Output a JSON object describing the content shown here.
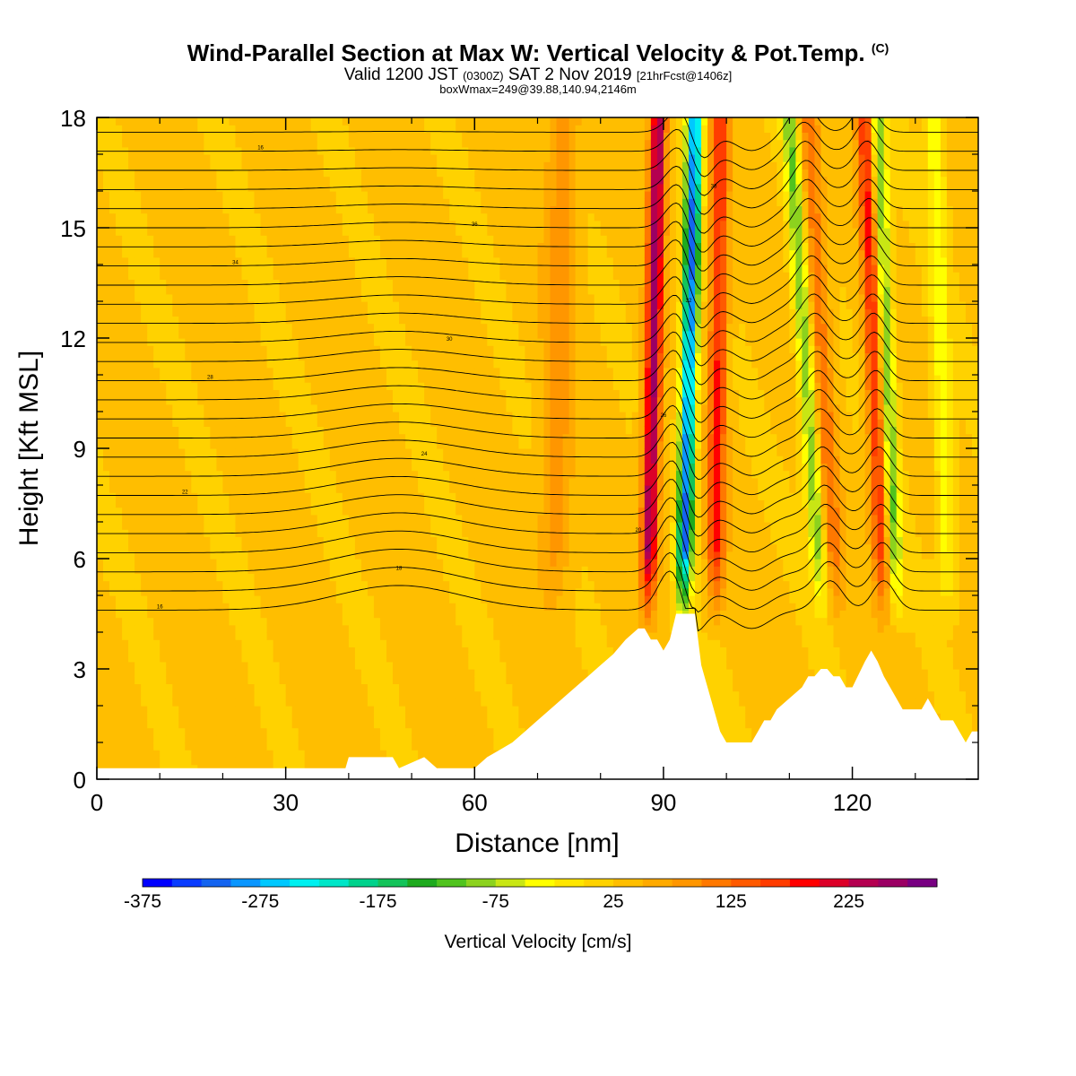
{
  "header": {
    "title": "Wind-Parallel Section at Max W: Vertical Velocity & Pot.Temp.",
    "title_mark": "(C)",
    "subtitle_valid": "Valid 1200 JST",
    "subtitle_utc": "(0300Z)",
    "subtitle_date": "SAT 2 Nov 2019",
    "subtitle_fcst": "[21hrFcst@1406z]",
    "subtitle2": "boxWmax=249@39.88,140.94,2146m"
  },
  "chart_data": {
    "type": "heatmap",
    "title": "Wind-Parallel Section at Max W: Vertical Velocity & Pot.Temp.",
    "xlabel": "Distance [nm]",
    "ylabel": "Height [Kft MSL]",
    "xlim": [
      0,
      140
    ],
    "ylim": [
      0,
      18
    ],
    "x_ticks": [
      "0",
      "30",
      "60",
      "90",
      "120"
    ],
    "x_tick_values": [
      0,
      30,
      60,
      90,
      120
    ],
    "y_ticks": [
      "0",
      "3",
      "6",
      "9",
      "12",
      "15",
      "18"
    ],
    "y_tick_values": [
      0,
      3,
      6,
      9,
      12,
      15,
      18
    ],
    "colorbar": {
      "title": "Vertical Velocity [cm/s]",
      "labels": [
        "-375",
        "-275",
        "-175",
        "-75",
        "25",
        "125",
        "225"
      ],
      "label_values": [
        -375,
        -275,
        -175,
        -75,
        25,
        125,
        225
      ],
      "min": -375,
      "max": 300,
      "step": 25,
      "colors": [
        "#0000ff",
        "#0a3cff",
        "#1464f0",
        "#0a96ff",
        "#00c8ff",
        "#00f0f0",
        "#00e6c8",
        "#00d28c",
        "#14c35a",
        "#1eaa1e",
        "#50c31e",
        "#8cd21e",
        "#c8e614",
        "#ffff00",
        "#ffe600",
        "#ffd200",
        "#ffbe00",
        "#ffaa00",
        "#ff9600",
        "#ff7800",
        "#ff5a00",
        "#ff3c00",
        "#ff0000",
        "#dc0028",
        "#b40050",
        "#9b0064",
        "#780082"
      ]
    },
    "w_updrafts_cm_s": [
      {
        "x_nm": 89,
        "peak": 250
      },
      {
        "x_nm": 99,
        "peak": 175
      },
      {
        "x_nm": 116,
        "peak": 100
      },
      {
        "x_nm": 124,
        "peak": 150
      }
    ],
    "w_downdrafts_cm_s": [
      {
        "x_nm": 94,
        "peak": -325
      },
      {
        "x_nm": 112,
        "peak": -125
      },
      {
        "x_nm": 127,
        "peak": -150
      }
    ],
    "terrain_kft": {
      "x": [
        0,
        39.5,
        40,
        47,
        48,
        52,
        54,
        60,
        62,
        64,
        66,
        68,
        70,
        72,
        74,
        76,
        78,
        80,
        82,
        84,
        86,
        87,
        88,
        89,
        90,
        91,
        92,
        95,
        96,
        97,
        98,
        99,
        100,
        104,
        105,
        106,
        107,
        108,
        110,
        112,
        113,
        114,
        115,
        116,
        117,
        118,
        119,
        120,
        122,
        123,
        124,
        125,
        126,
        127,
        128,
        129,
        130,
        131,
        132,
        133,
        134,
        136,
        137,
        138,
        139,
        140
      ],
      "height": [
        0.3,
        0.3,
        0.6,
        0.6,
        0.3,
        0.6,
        0.3,
        0.3,
        0.6,
        0.8,
        1.0,
        1.3,
        1.6,
        1.9,
        2.2,
        2.5,
        2.8,
        3.1,
        3.4,
        3.8,
        4.1,
        4.1,
        3.8,
        3.8,
        3.5,
        3.8,
        4.5,
        4.5,
        3.1,
        2.5,
        1.9,
        1.3,
        1.0,
        1.0,
        1.3,
        1.6,
        1.6,
        1.9,
        2.2,
        2.5,
        2.8,
        2.8,
        3.0,
        3.0,
        2.8,
        2.8,
        2.5,
        2.5,
        3.2,
        3.5,
        3.2,
        2.8,
        2.5,
        2.2,
        1.9,
        1.9,
        1.9,
        1.9,
        2.2,
        1.9,
        1.6,
        1.6,
        1.3,
        1.0,
        1.3,
        1.3
      ]
    },
    "theta_contour_labels": [
      "16",
      "18",
      "20",
      "22",
      "24",
      "26",
      "28",
      "30",
      "32",
      "34",
      "36",
      "38"
    ]
  }
}
